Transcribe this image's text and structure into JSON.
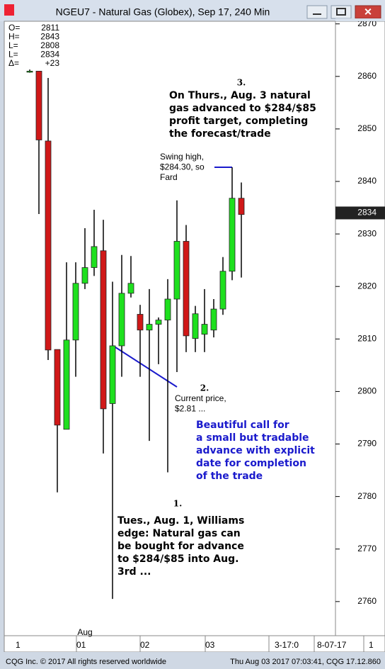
{
  "window_title": "NGEU7 - Natural Gas (Globex), Sep 17, 240 Min",
  "info": [
    {
      "label": "O=",
      "value": 2811
    },
    {
      "label": "H=",
      "value": 2843
    },
    {
      "label": "L=",
      "value": 2808
    },
    {
      "label": "L=",
      "value": 2834
    },
    {
      "label": "Δ=",
      "value": "+23"
    }
  ],
  "chart_data": {
    "type": "candlestick",
    "categories": [
      null,
      null,
      null,
      null,
      null,
      null,
      null,
      null,
      null,
      null,
      null,
      null,
      null,
      null,
      null,
      null,
      null,
      null,
      null,
      null,
      null,
      null,
      null,
      null
    ],
    "open": [
      2861,
      2861,
      2847.7,
      2808,
      2792.8,
      2809.8,
      2820.6,
      2823.6,
      2826.8,
      2797.7,
      2808.7,
      2818.7,
      2814.7,
      2811.7,
      2812.8,
      2813.6,
      2817.6,
      2828.6,
      2810.1,
      2810.9,
      2811.7,
      2815.7,
      2822.9,
      2836.8
    ],
    "high": [
      2861.3,
      2861,
      2859.7,
      2808,
      2824.6,
      2824.6,
      2831.1,
      2834.6,
      2832.7,
      2820.9,
      2826,
      2825.8,
      2816.5,
      2819.5,
      2814.1,
      2821.4,
      2836.4,
      2831.7,
      2816.3,
      2819.5,
      2817.6,
      2825.6,
      2842.7,
      2839.8
    ],
    "low": [
      2860.7,
      2833.8,
      2806,
      2780.8,
      2792.8,
      2802.8,
      2819.5,
      2822,
      2788.2,
      2760.5,
      2802.8,
      2817.9,
      2802.8,
      2790.6,
      2805.2,
      2784.6,
      2803.7,
      2807.5,
      2807.5,
      2807.5,
      2810.3,
      2814.6,
      2821.2,
      2821.7
    ],
    "close": [
      2861,
      2847.9,
      2807.9,
      2793.6,
      2809.8,
      2820.6,
      2823.6,
      2827.6,
      2796.7,
      2808.7,
      2818.7,
      2820.6,
      2811.7,
      2812.8,
      2813.6,
      2817.6,
      2828.6,
      2810.6,
      2814.8,
      2812.8,
      2815.7,
      2822.9,
      2836.8,
      2833.7
    ],
    "up_color": "#1ee01e",
    "down_color": "#d01818",
    "ylim": [
      2753.5,
      2870.5
    ],
    "yticks": [
      2760,
      2770,
      2780,
      2790,
      2800,
      2810,
      2820,
      2830,
      2840,
      2850,
      2860,
      2870
    ],
    "last_price": 2834,
    "x_labels": [
      "1",
      "Aug",
      "01",
      "02",
      "03",
      "3-17:0",
      "8-07-17",
      "1"
    ],
    "annotations": [
      {
        "number": "3.",
        "lines": [
          "On Thurs., Aug. 3 natural",
          "gas advanced to $284/$85",
          "profit target, completing",
          "the forecast/trade"
        ]
      },
      {
        "lines": [
          "Swing high,",
          "$284.30, so",
          "Fard"
        ]
      },
      {
        "number": "2.",
        "lines": [
          "Current price,",
          "$2.81 ..."
        ]
      },
      {
        "lines": [
          "Beautiful call for",
          "a small but tradable",
          "advance with explicit",
          "date for completion",
          "of the trade"
        ]
      },
      {
        "number": "1.",
        "lines": [
          "Tues., Aug.  1, Williams",
          "edge: Natural gas can",
          "be bought for advance",
          "to $284/$85 into Aug.",
          "3rd ..."
        ]
      }
    ]
  },
  "footer": {
    "left": "CQG Inc. © 2017 All rights reserved worldwide",
    "right": "Thu Aug 03 2017 07:03:41, CQG 17.12.860"
  }
}
